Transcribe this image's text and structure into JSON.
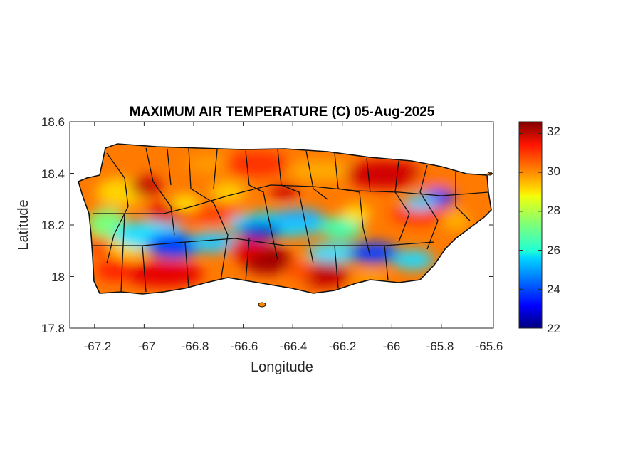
{
  "chart_data": {
    "type": "heatmap",
    "title": "MAXIMUM AIR TEMPERATURE (C) 05-Aug-2025",
    "xlabel": "Longitude",
    "ylabel": "Latitude",
    "xlim": [
      -67.3,
      -65.59
    ],
    "ylim": [
      17.8,
      18.6
    ],
    "xticks": [
      -67.2,
      -67,
      -66.8,
      -66.6,
      -66.4,
      -66.2,
      -66,
      -65.8,
      -65.6
    ],
    "xtick_labels": [
      "-67.2",
      "-67",
      "-66.8",
      "-66.6",
      "-66.4",
      "-66.2",
      "-66",
      "-65.8",
      "-65.6"
    ],
    "yticks": [
      17.8,
      18,
      18.2,
      18.4,
      18.6
    ],
    "ytick_labels": [
      "17.8",
      "18",
      "18.2",
      "18.4",
      "18.6"
    ],
    "colorbar": {
      "colormap": "jet",
      "min": 22,
      "max": 32.6,
      "ticks": [
        22,
        24,
        26,
        28,
        30,
        32
      ],
      "tick_labels": [
        "22",
        "24",
        "26",
        "28",
        "30",
        "32"
      ]
    },
    "hotspots_celsius": [
      {
        "lon": -66.5,
        "lat": 18.06,
        "value": 32.2
      },
      {
        "lon": -66.25,
        "lat": 18.02,
        "value": 32.0
      },
      {
        "lon": -66.05,
        "lat": 18.41,
        "value": 31.8
      },
      {
        "lon": -66.7,
        "lat": 18.28,
        "value": 31.5
      },
      {
        "lon": -66.93,
        "lat": 18.02,
        "value": 31.2
      },
      {
        "lon": -67.15,
        "lat": 17.99,
        "value": 31.0
      },
      {
        "lon": -66.57,
        "lat": 18.16,
        "value": 24.0
      },
      {
        "lon": -66.92,
        "lat": 18.13,
        "value": 24.2
      },
      {
        "lon": -65.8,
        "lat": 18.3,
        "value": 23.8
      },
      {
        "lon": -66.1,
        "lat": 18.08,
        "value": 24.3
      },
      {
        "lon": -66.38,
        "lat": 18.24,
        "value": 25.0
      }
    ],
    "grid": false,
    "legend": "colorbar-right"
  }
}
